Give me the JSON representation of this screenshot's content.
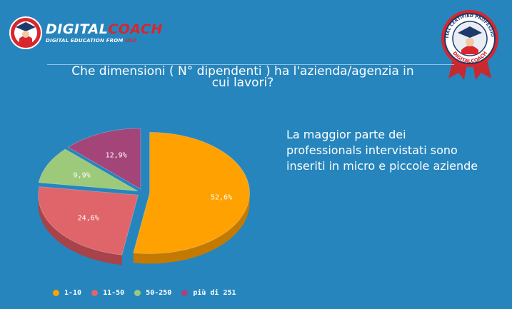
{
  "brand": {
    "name_part1": "DIGITAL",
    "name_part2": "COACH",
    "tagline_part1": "DIGITAL EDUCATION FROM ",
    "tagline_part2": "USA",
    "badge_top_text": "DIGITAL CERTIFIED PROFESSIONAL",
    "badge_bottom_text": "DIGITALCOACH",
    "colors": {
      "red": "#d9262c",
      "navy": "#1d3a6b",
      "background": "#2685bd"
    }
  },
  "question": {
    "line1": "Che dimensioni ( N° dipendenti ) ha l'azienda/agenzia in",
    "line2": "cui lavori?"
  },
  "note": {
    "line1": "La maggior parte dei",
    "line2": "professionals intervistati sono",
    "line3": "inseriti in micro e piccole aziende"
  },
  "chart_data": {
    "type": "pie",
    "style": "3d-exploded",
    "title": "",
    "slices": [
      {
        "label": "1-10",
        "value": 52.6,
        "display": "52,6%",
        "color": "#ffa100",
        "side_color": "#c47a00"
      },
      {
        "label": "11-50",
        "value": 24.6,
        "display": "24,6%",
        "color": "#e0656a",
        "side_color": "#a8434a"
      },
      {
        "label": "50-250",
        "value": 9.9,
        "display": "9,9%",
        "color": "#9cc97a",
        "side_color": "#6f9a52"
      },
      {
        "label": "più di 251",
        "value": 12.9,
        "display": "12,9%",
        "color": "#a4457a",
        "side_color": "#7a3059"
      }
    ],
    "legend_position": "bottom-left"
  }
}
